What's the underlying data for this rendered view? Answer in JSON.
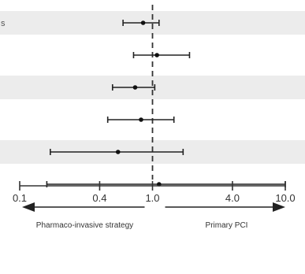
{
  "chart_data": {
    "type": "forest",
    "x_scale": "log",
    "xlim": [
      0.1,
      10.0
    ],
    "xticks": [
      0.1,
      0.4,
      1.0,
      4.0,
      10.0
    ],
    "xtick_labels": [
      "0.1",
      "0.4",
      "1.0",
      "4.0",
      "10.0"
    ],
    "reference_line": 1.0,
    "rows": [
      {
        "estimate": 0.85,
        "lower": 0.6,
        "upper": 1.12,
        "shaded": true
      },
      {
        "estimate": 1.08,
        "lower": 0.72,
        "upper": 1.9,
        "shaded": false
      },
      {
        "estimate": 0.74,
        "lower": 0.5,
        "upper": 1.04,
        "shaded": true
      },
      {
        "estimate": 0.82,
        "lower": 0.46,
        "upper": 1.45,
        "shaded": false
      },
      {
        "estimate": 0.55,
        "lower": 0.17,
        "upper": 1.7,
        "shaded": true
      },
      {
        "estimate": 1.12,
        "lower": 0.16,
        "upper": 10.0,
        "shaded": false
      }
    ],
    "left_direction_label": "Pharmaco-invasive strategy",
    "right_direction_label": "Primary PCI"
  },
  "edge_text": {
    "top_left": "s"
  }
}
